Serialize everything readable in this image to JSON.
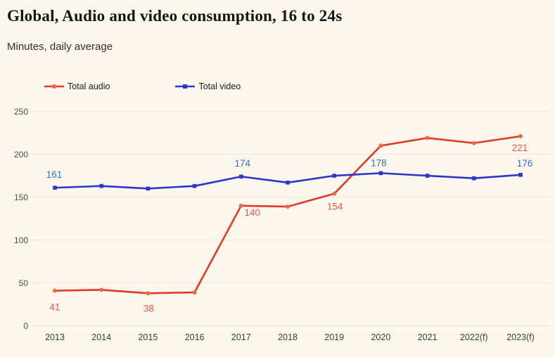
{
  "header": {
    "title": "Global, Audio and video consumption, 16 to 24s",
    "subtitle": "Minutes, daily average"
  },
  "colors": {
    "background": "#fbf7ec",
    "gridline": "#edeade",
    "axis_text": "#4c4c4c",
    "audio_line": "#e03a26",
    "audio_marker": "#ef6b41",
    "audio_label": "#ea5546",
    "video_line": "#2c35cd",
    "video_marker": "#2c35cd",
    "video_label": "#2e6fd0"
  },
  "chart_data": {
    "type": "line",
    "title": "Global, Audio and video consumption, 16 to 24s",
    "subtitle": "Minutes, daily average",
    "categories": [
      "2013",
      "2014",
      "2015",
      "2016",
      "2017",
      "2018",
      "2019",
      "2020",
      "2021",
      "2022(f)",
      "2023(f)"
    ],
    "series": [
      {
        "name": "Total audio",
        "line_color": "#e03a26",
        "marker_color": "#ef6b41",
        "label_color": "#ea5546",
        "marker": "circle",
        "values": [
          41,
          42,
          38,
          39,
          140,
          139,
          154,
          210,
          219,
          213,
          221
        ],
        "point_labels": [
          {
            "i": 0,
            "text": "41",
            "dx": 0,
            "dy": 28
          },
          {
            "i": 2,
            "text": "38",
            "dx": 1,
            "dy": 26
          },
          {
            "i": 4,
            "text": "140",
            "dx": 16,
            "dy": 14
          },
          {
            "i": 6,
            "text": "154",
            "dx": 1,
            "dy": 23
          },
          {
            "i": 10,
            "text": "221",
            "dx": -1,
            "dy": 21
          }
        ]
      },
      {
        "name": "Total video",
        "line_color": "#2c35cd",
        "marker_color": "#2c35cd",
        "label_color": "#2e6fd0",
        "marker": "square",
        "values": [
          161,
          163,
          160,
          163,
          174,
          167,
          175,
          178,
          175,
          172,
          176
        ],
        "point_labels": [
          {
            "i": 0,
            "text": "161",
            "dx": -1,
            "dy": -14
          },
          {
            "i": 4,
            "text": "174",
            "dx": 2,
            "dy": -14
          },
          {
            "i": 7,
            "text": "178",
            "dx": -3,
            "dy": -10
          },
          {
            "i": 10,
            "text": "176",
            "dx": 6,
            "dy": -12
          }
        ]
      }
    ],
    "xlabel": "",
    "ylabel": "",
    "ylim": [
      0,
      250
    ],
    "yticks": [
      0,
      50,
      100,
      150,
      200,
      250
    ],
    "grid": "horizontal",
    "legend_position": "top-left"
  }
}
